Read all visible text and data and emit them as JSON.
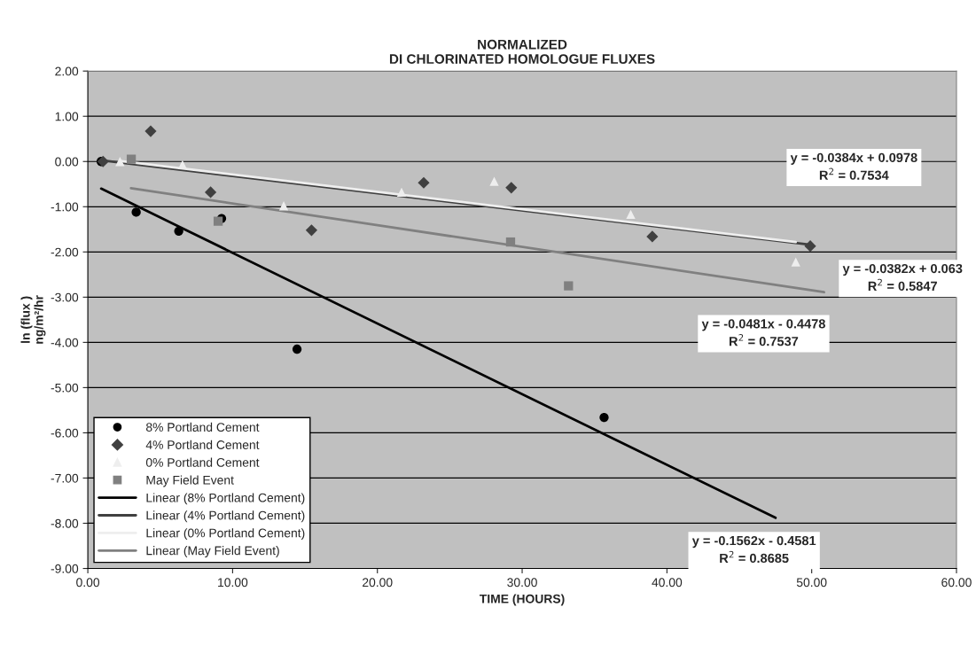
{
  "chart_data": {
    "type": "scatter",
    "title": "NORMALIZED\nDI CHLORINATED HOMOLOGUE FLUXES",
    "xlabel": "TIME (HOURS)",
    "ylabel": "ln (flux )\nng/m²/hr",
    "series": [
      {
        "name": "8% Portland Cement",
        "marker": "circle",
        "color": "#000000",
        "x": [
          0.92,
          3.34,
          6.28,
          9.24,
          14.45,
          35.66
        ],
        "values": [
          0.0,
          -1.12,
          -1.54,
          -1.26,
          -4.15,
          -5.66
        ]
      },
      {
        "name": "4% Portland Cement",
        "marker": "diamond",
        "color": "#404040",
        "x": [
          1.05,
          4.34,
          8.48,
          15.45,
          23.2,
          29.25,
          38.99,
          49.9
        ],
        "values": [
          0.0,
          0.67,
          -0.68,
          -1.52,
          -0.47,
          -0.58,
          -1.66,
          -1.87
        ]
      },
      {
        "name": "0% Portland Cement",
        "marker": "triangle",
        "color": "#eeeeee",
        "x": [
          2.22,
          6.54,
          13.53,
          21.67,
          28.07,
          37.5,
          48.9
        ],
        "values": [
          0.0,
          -0.07,
          -0.98,
          -0.68,
          -0.44,
          -1.17,
          -2.22
        ]
      },
      {
        "name": "May Field Event",
        "marker": "square",
        "color": "#808080",
        "x": [
          3.0,
          9.0,
          29.2,
          33.2
        ],
        "values": [
          0.05,
          -1.32,
          -1.78,
          -2.75
        ]
      },
      {
        "name": "Linear (8% Portland Cement)",
        "type": "line",
        "color": "#000000",
        "x": [
          0.92,
          47.5
        ],
        "values": [
          -0.6,
          -7.88
        ]
      },
      {
        "name": "Linear (4% Portland Cement)",
        "type": "line",
        "color": "#404040",
        "x": [
          1.05,
          49.9
        ],
        "values": [
          0.02,
          -1.84
        ]
      },
      {
        "name": "Linear (0% Portland Cement)",
        "type": "line",
        "color": "#eeeeee",
        "x": [
          2.22,
          48.9
        ],
        "values": [
          0.01,
          -1.78
        ]
      },
      {
        "name": "Linear (May Field Event)",
        "type": "line",
        "color": "#808080",
        "x": [
          2.98,
          50.85
        ],
        "values": [
          -0.59,
          -2.89
        ]
      }
    ],
    "annotations": [
      "y = -0.0384x + 0.0978\nR$^{2}$ = 0.7534",
      "y = -0.0382x + 0.063\nR$^{2}$ = 0.5847",
      "y = -0.0481x - 0.4478\nR$^{2}$ = 0.7537",
      "y = -0.1562x - 0.4581\nR$^{2}$ = 0.8685"
    ],
    "xlim": [
      0,
      60
    ],
    "ylim": [
      -9,
      2
    ],
    "xticks": [
      {
        "value": 0,
        "label": "0.00"
      },
      {
        "value": 10,
        "label": "10.00"
      },
      {
        "value": 20,
        "label": "20.00"
      },
      {
        "value": 30,
        "label": "30.00"
      },
      {
        "value": 40,
        "label": "40.00"
      },
      {
        "value": 50,
        "label": "50.00"
      },
      {
        "value": 60,
        "label": "60.00"
      }
    ],
    "yticks": [
      {
        "value": 2,
        "label": "2.00"
      },
      {
        "value": 1,
        "label": "1.00"
      },
      {
        "value": 0,
        "label": "0.00"
      },
      {
        "value": -1,
        "label": "-1.00"
      },
      {
        "value": -2,
        "label": "-2.00"
      },
      {
        "value": -3,
        "label": "-3.00"
      },
      {
        "value": -4,
        "label": "-4.00"
      },
      {
        "value": -5,
        "label": "-5.00"
      },
      {
        "value": -6,
        "label": "-6.00"
      },
      {
        "value": -7,
        "label": "-7.00"
      },
      {
        "value": -8,
        "label": "-8.00"
      },
      {
        "value": -9,
        "label": "-9.00"
      }
    ],
    "grid": "y",
    "legend": "bottom left"
  }
}
